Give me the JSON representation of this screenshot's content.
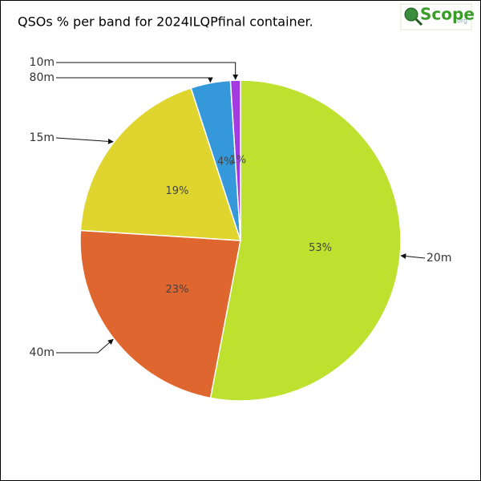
{
  "chart_data": {
    "type": "pie",
    "title": "QSOs % per band for 2024ILQPfinal container.",
    "categories": [
      "20m",
      "40m",
      "15m",
      "80m",
      "10m"
    ],
    "values": [
      53,
      23,
      19,
      4,
      1
    ],
    "value_labels": [
      "53%",
      "23%",
      "19%",
      "4%",
      "1%"
    ],
    "colors": [
      "#bde12e",
      "#e0662f",
      "#e0d52f",
      "#3498db",
      "#a43be0"
    ]
  },
  "logo": {
    "text": "Scope",
    "suffix": "org"
  }
}
